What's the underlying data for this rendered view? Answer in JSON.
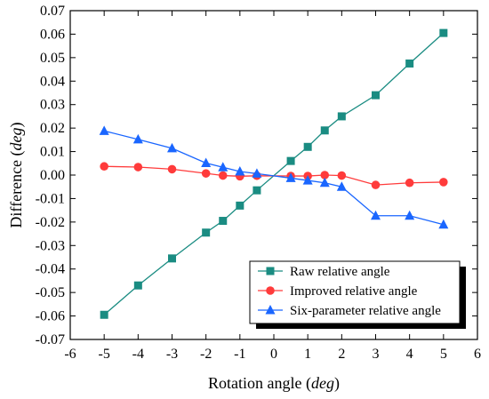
{
  "chart_data": {
    "type": "line",
    "xlabel": "Rotation angle",
    "xlabel_unit": "deg",
    "ylabel": "Difference",
    "ylabel_unit": "deg",
    "xlim": [
      -6,
      6
    ],
    "ylim": [
      -0.07,
      0.07
    ],
    "xticks": [
      "-6",
      "-5",
      "-4",
      "-3",
      "-2",
      "-1",
      "0",
      "1",
      "2",
      "3",
      "4",
      "5",
      "6"
    ],
    "yticks": [
      "-0.07",
      "-0.06",
      "-0.05",
      "-0.04",
      "-0.03",
      "-0.02",
      "-0.01",
      "0.00",
      "0.01",
      "0.02",
      "0.03",
      "0.04",
      "0.05",
      "0.06",
      "0.07"
    ],
    "grid": false,
    "legend_position": "bottom-right",
    "x": [
      -5,
      -4,
      -3,
      -2,
      -1.5,
      -1,
      -0.5,
      0.5,
      1,
      1.5,
      2,
      3,
      4,
      5
    ],
    "series": [
      {
        "name": "Raw relative angle",
        "color": "#1a8c82",
        "marker": "square",
        "values": [
          -0.0595,
          -0.047,
          -0.0355,
          -0.0245,
          -0.0195,
          -0.013,
          -0.0065,
          0.006,
          0.012,
          0.019,
          0.025,
          0.034,
          0.0475,
          0.0605
        ]
      },
      {
        "name": "Improved relative angle",
        "color": "#ff3b3b",
        "marker": "circle",
        "values": [
          0.0037,
          0.0034,
          0.0025,
          0.0007,
          -0.0002,
          -0.0005,
          -0.0003,
          -0.0004,
          -0.0004,
          0.0,
          -0.0002,
          -0.0042,
          -0.0033,
          -0.003
        ]
      },
      {
        "name": "Six-parameter relative angle",
        "color": "#1a66ff",
        "marker": "triangle",
        "values": [
          0.0188,
          0.0152,
          0.0114,
          0.0051,
          0.0033,
          0.0015,
          0.0006,
          -0.0013,
          -0.0023,
          -0.0033,
          -0.005,
          -0.0173,
          -0.0173,
          -0.0211
        ]
      }
    ]
  }
}
